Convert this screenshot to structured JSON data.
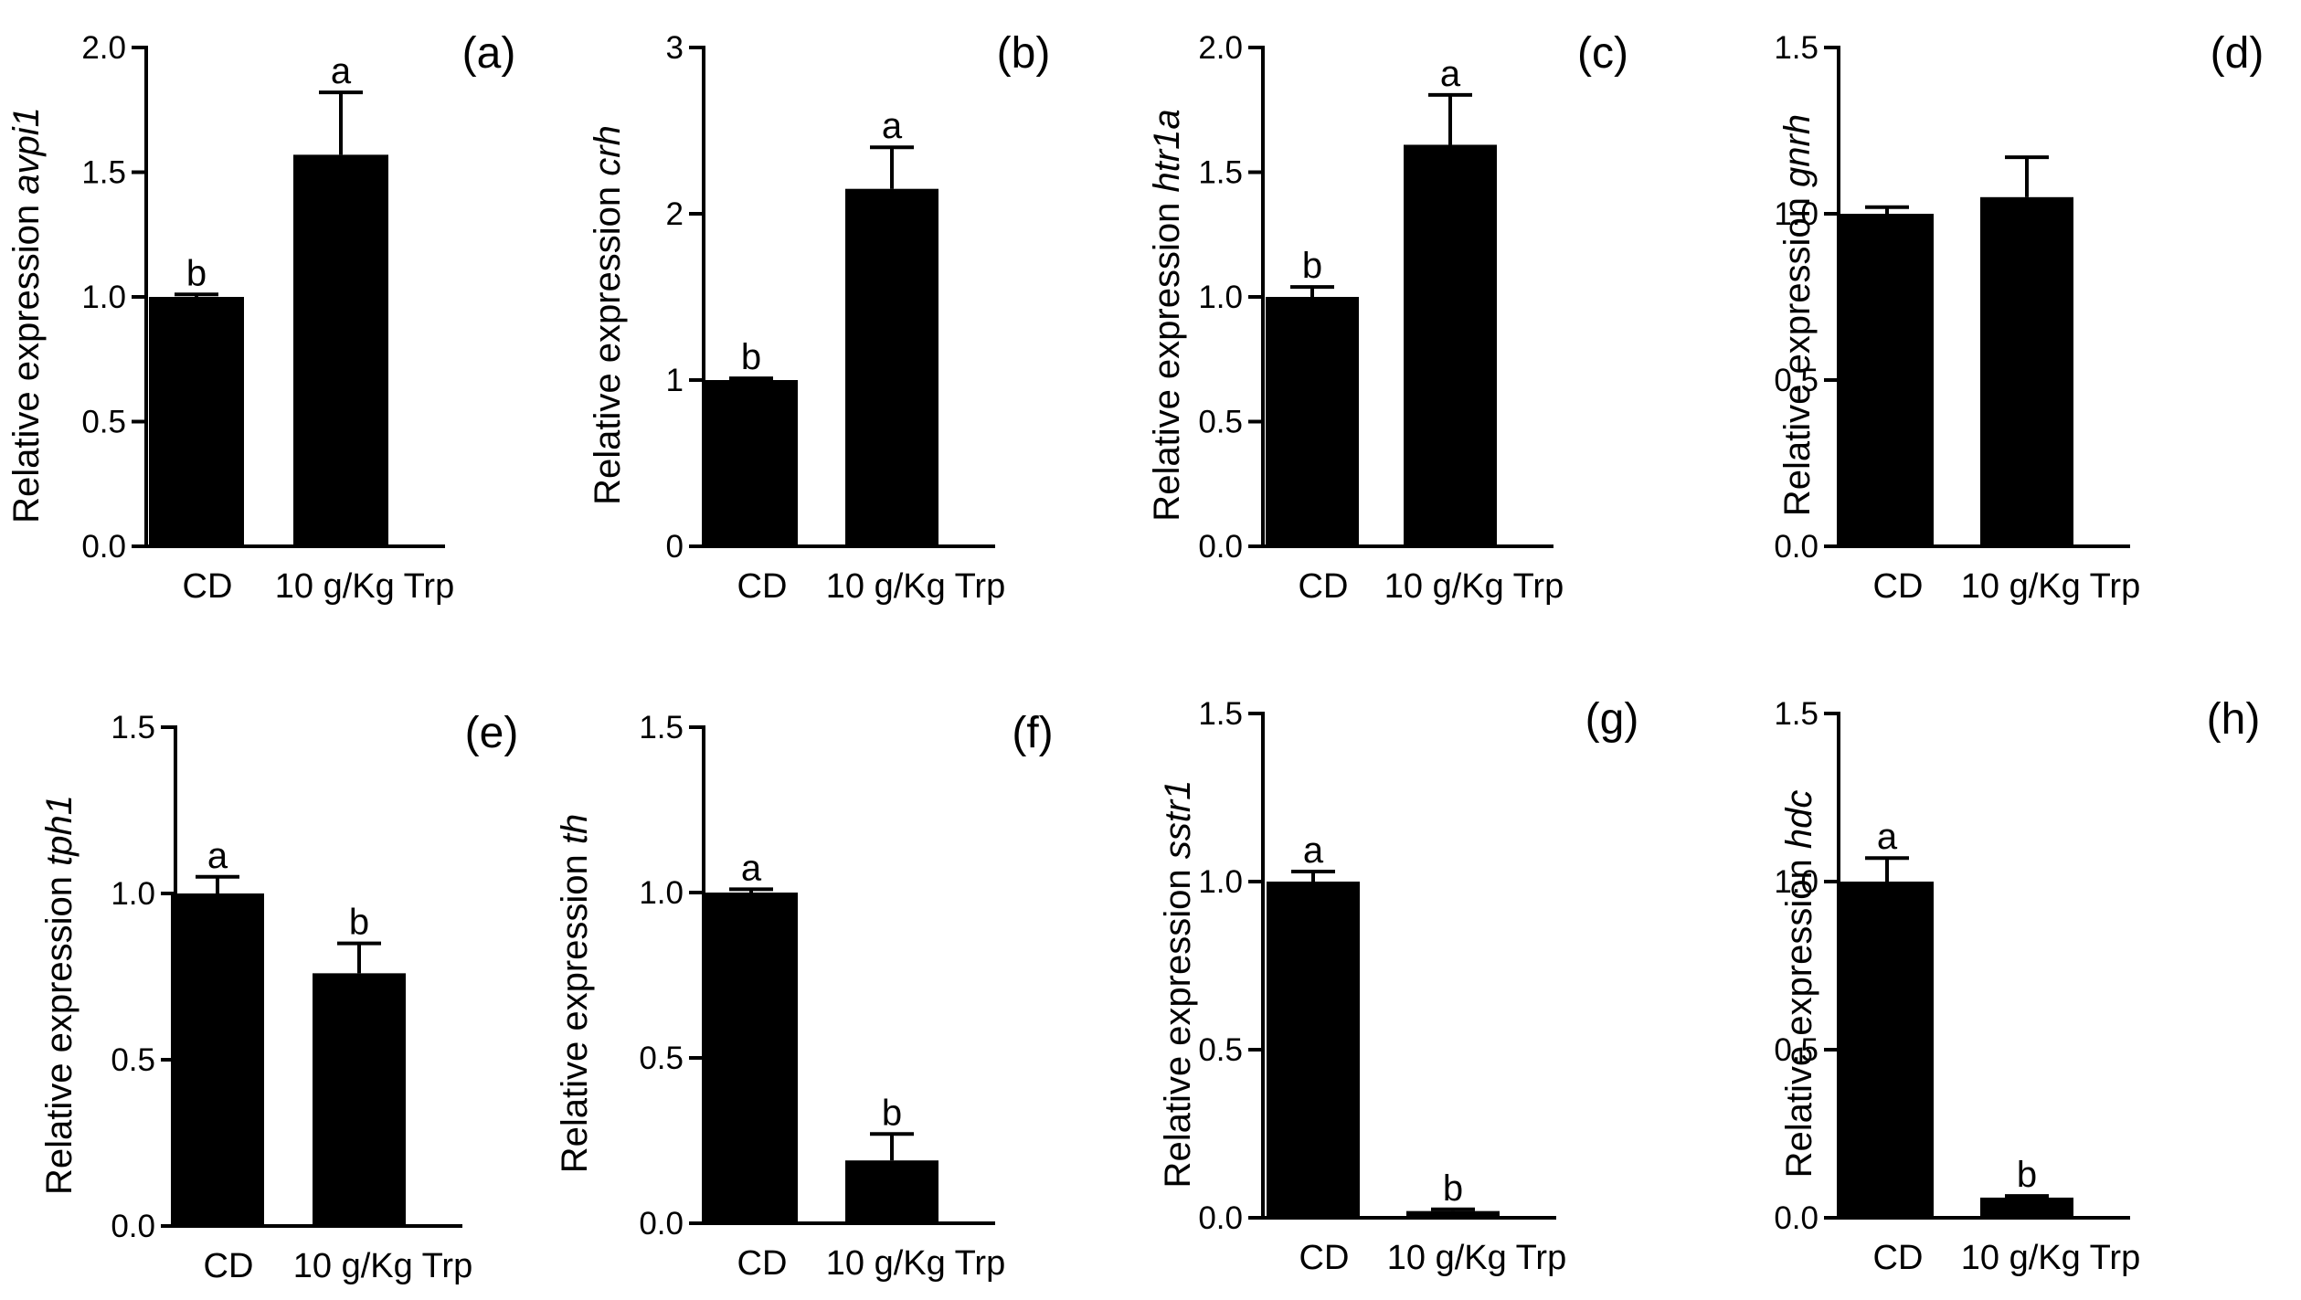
{
  "figure": {
    "description_free": true
  },
  "chart_data": [
    {
      "type": "bar",
      "panel_label": "(a)",
      "ylabel_prefix": "Relative expression ",
      "gene": "avpi1",
      "categories": [
        "CD",
        "10 g/Kg Trp"
      ],
      "values": [
        1.0,
        1.57
      ],
      "errors": [
        0.01,
        0.25
      ],
      "significance": [
        "b",
        "a"
      ],
      "ylim": [
        0,
        2.0
      ],
      "yticks": [
        "0.0",
        "0.5",
        "1.0",
        "1.5",
        "2.0"
      ]
    },
    {
      "type": "bar",
      "panel_label": "(b)",
      "ylabel_prefix": "Relative expression ",
      "gene": "crh",
      "categories": [
        "CD",
        "10 g/Kg Trp"
      ],
      "values": [
        1.0,
        2.15
      ],
      "errors": [
        0.01,
        0.25
      ],
      "significance": [
        "b",
        "a"
      ],
      "ylim": [
        0,
        3
      ],
      "yticks": [
        "0",
        "1",
        "2",
        "3"
      ]
    },
    {
      "type": "bar",
      "panel_label": "(c)",
      "ylabel_prefix": "Relative expression ",
      "gene": "htr1a",
      "categories": [
        "CD",
        "10 g/Kg Trp"
      ],
      "values": [
        1.0,
        1.61
      ],
      "errors": [
        0.04,
        0.2
      ],
      "significance": [
        "b",
        "a"
      ],
      "ylim": [
        0,
        2.0
      ],
      "yticks": [
        "0.0",
        "0.5",
        "1.0",
        "1.5",
        "2.0"
      ]
    },
    {
      "type": "bar",
      "panel_label": "(d)",
      "ylabel_prefix": "Relative expression ",
      "gene": "gnrh",
      "categories": [
        "CD",
        "10 g/Kg Trp"
      ],
      "values": [
        1.0,
        1.05
      ],
      "errors": [
        0.02,
        0.12
      ],
      "significance": [
        "",
        ""
      ],
      "ylim": [
        0,
        1.5
      ],
      "yticks": [
        "0.0",
        "0.5",
        "1.0",
        "1.5"
      ]
    },
    {
      "type": "bar",
      "panel_label": "(e)",
      "ylabel_prefix": "Relative expression ",
      "gene": "tph1",
      "categories": [
        "CD",
        "10 g/Kg Trp"
      ],
      "values": [
        1.0,
        0.76
      ],
      "errors": [
        0.05,
        0.09
      ],
      "significance": [
        "a",
        "b"
      ],
      "ylim": [
        0,
        1.5
      ],
      "yticks": [
        "0.0",
        "0.5",
        "1.0",
        "1.5"
      ]
    },
    {
      "type": "bar",
      "panel_label": "(f)",
      "ylabel_prefix": "Relative expression ",
      "gene": "th",
      "categories": [
        "CD",
        "10 g/Kg Trp"
      ],
      "values": [
        1.0,
        0.19
      ],
      "errors": [
        0.01,
        0.08
      ],
      "significance": [
        "a",
        "b"
      ],
      "ylim": [
        0,
        1.5
      ],
      "yticks": [
        "0.0",
        "0.5",
        "1.0",
        "1.5"
      ]
    },
    {
      "type": "bar",
      "panel_label": "(g)",
      "ylabel_prefix": "Relative expression ",
      "gene": "sstr1",
      "categories": [
        "CD",
        "10 g/Kg Trp"
      ],
      "values": [
        1.0,
        0.02
      ],
      "errors": [
        0.03,
        0.005
      ],
      "significance": [
        "a",
        "b"
      ],
      "ylim": [
        0,
        1.5
      ],
      "yticks": [
        "0.0",
        "0.5",
        "1.0",
        "1.5"
      ]
    },
    {
      "type": "bar",
      "panel_label": "(h)",
      "ylabel_prefix": "Relative expression ",
      "gene": "hdc",
      "categories": [
        "CD",
        "10 g/Kg Trp"
      ],
      "values": [
        1.0,
        0.06
      ],
      "errors": [
        0.07,
        0.005
      ],
      "significance": [
        "a",
        "b"
      ],
      "ylim": [
        0,
        1.5
      ],
      "yticks": [
        "0.0",
        "0.5",
        "1.0",
        "1.5"
      ]
    }
  ]
}
